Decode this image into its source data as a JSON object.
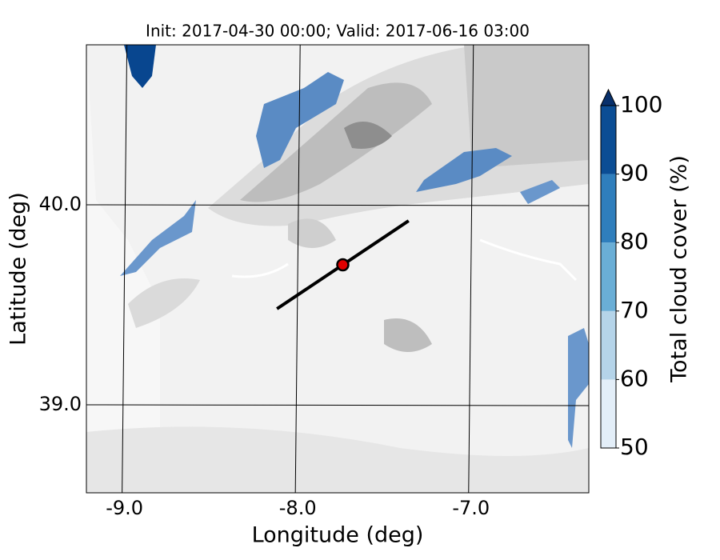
{
  "chart_data": {
    "type": "map",
    "title": "Init: 2017-04-30 00:00; Valid: 2017-06-16 03:00",
    "xlabel": "Longitude (deg)",
    "ylabel": "Latitude (deg)",
    "xlim": [
      -9.22,
      -6.32
    ],
    "ylim": [
      38.56,
      40.8
    ],
    "xticks": [
      {
        "value": -9,
        "label": "-9.0"
      },
      {
        "value": -8,
        "label": "-8.0"
      },
      {
        "value": -7,
        "label": "-7.0"
      }
    ],
    "yticks": [
      {
        "value": 39,
        "label": "39.0"
      },
      {
        "value": 40,
        "label": "40.0"
      }
    ],
    "grid": true,
    "cross_section": {
      "start": [
        -8.12,
        39.48
      ],
      "end": [
        -7.36,
        39.92
      ],
      "point": [
        -7.74,
        39.7
      ],
      "color": "#000000",
      "point_color": "#e00000"
    },
    "colorbar": {
      "label": "Total cloud cover (%)",
      "ticks": [
        50,
        60,
        70,
        80,
        90,
        100
      ],
      "colors": [
        "#e3eef8",
        "#b5d4e9",
        "#6aaed6",
        "#2f7ebc",
        "#0b4d94"
      ],
      "extend_color": "#08306b"
    }
  }
}
